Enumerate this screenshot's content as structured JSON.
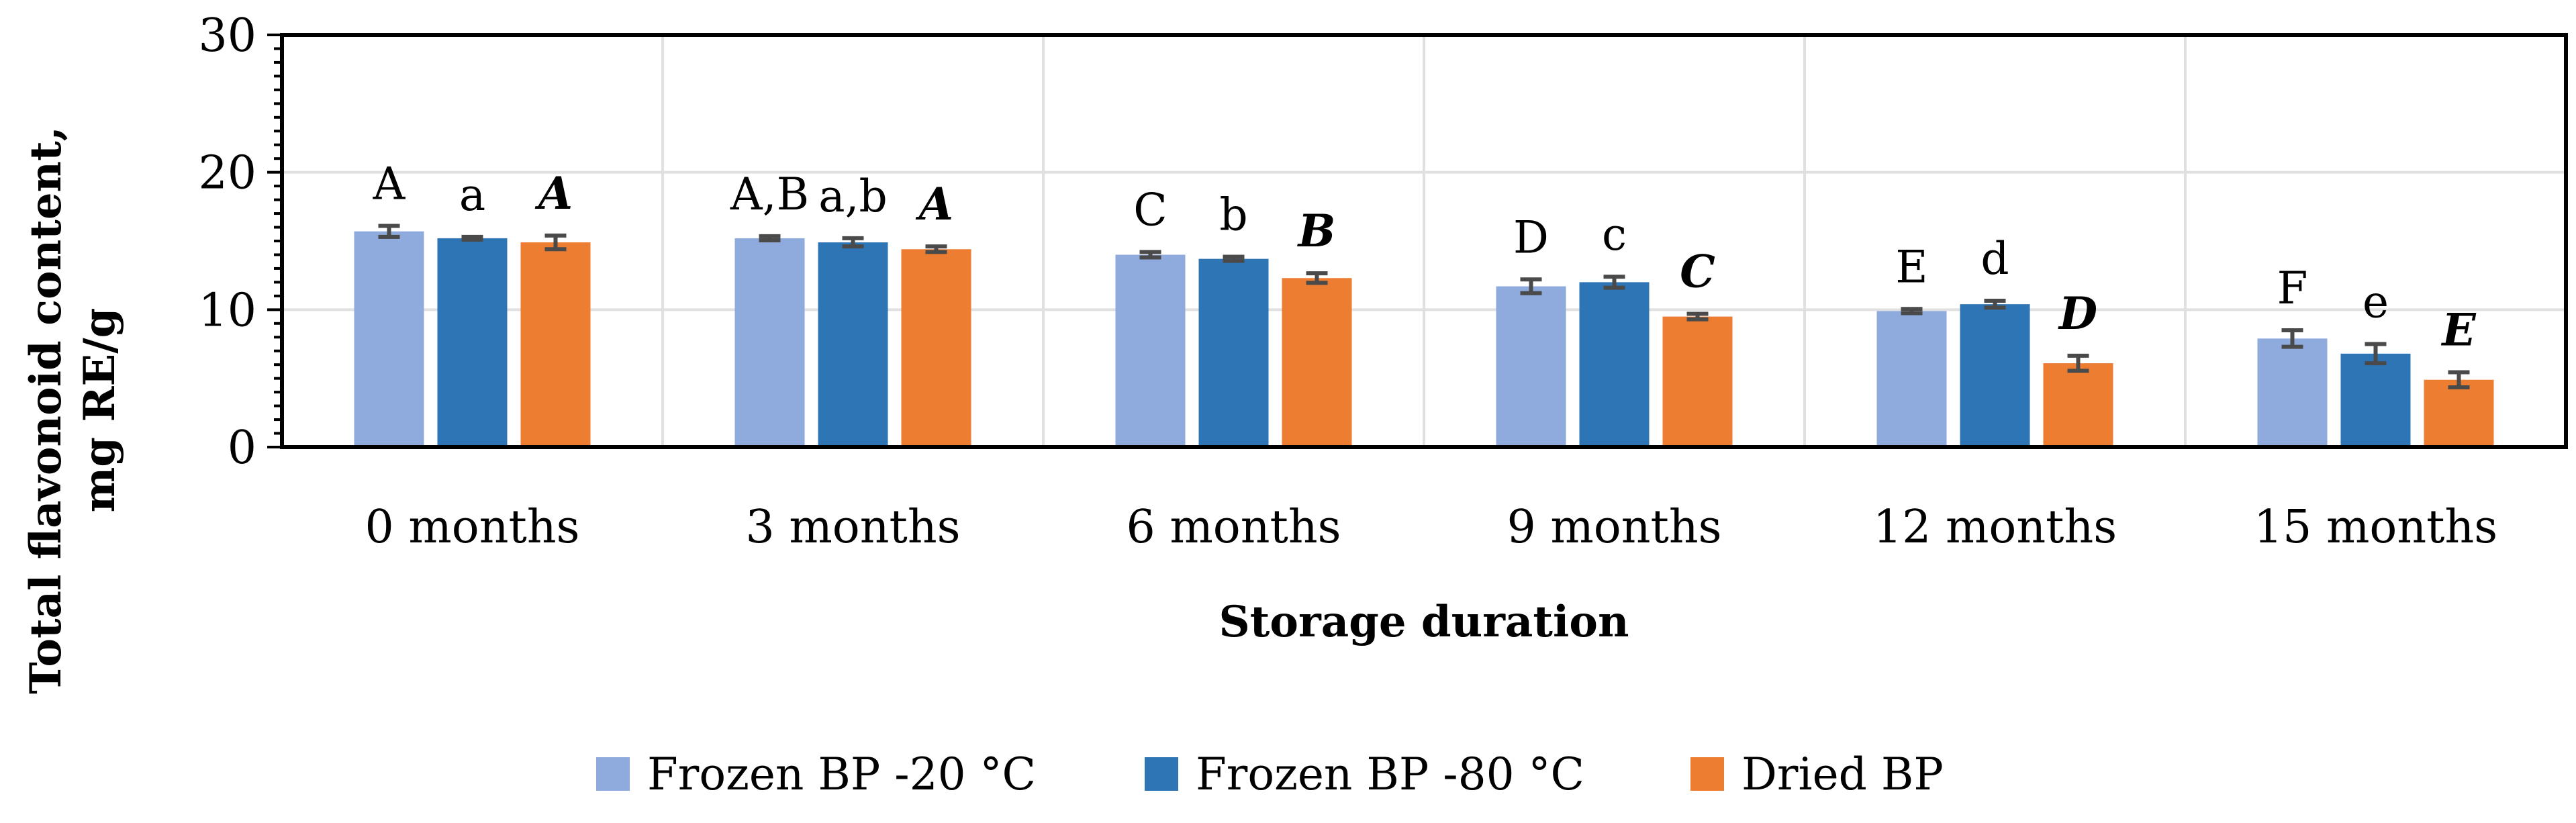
{
  "chart_data": {
    "type": "bar",
    "title": "",
    "xlabel": "Storage duration",
    "ylabel_line1": "Total flavonoid content,",
    "ylabel_line2": "mg RE/g",
    "ylim": [
      0,
      30
    ],
    "yticks": [
      0,
      10,
      20,
      30
    ],
    "grid": true,
    "legend_position": "bottom",
    "categories": [
      "0 months",
      "3 months",
      "6 months",
      "9 months",
      "12 months",
      "15 months"
    ],
    "series": [
      {
        "name": "Frozen BP -20 °C",
        "color": "#8faadc",
        "values": [
          15.7,
          15.2,
          14.0,
          11.7,
          9.9,
          7.9
        ],
        "errors": [
          0.4,
          0.15,
          0.2,
          0.5,
          0.15,
          0.6
        ],
        "letters": [
          "A",
          "A,B",
          "C",
          "D",
          "E",
          "F"
        ],
        "letter_style": "normal"
      },
      {
        "name": "Frozen BP -80 °C",
        "color": "#2e75b6",
        "values": [
          15.2,
          14.9,
          13.7,
          12.0,
          10.4,
          6.8
        ],
        "errors": [
          0.1,
          0.3,
          0.15,
          0.4,
          0.25,
          0.7
        ],
        "letters": [
          "a",
          "a,b",
          "b",
          "c",
          "d",
          "e"
        ],
        "letter_style": "normal"
      },
      {
        "name": "Dried BP",
        "color": "#ed7d31",
        "values": [
          14.9,
          14.4,
          12.3,
          9.5,
          6.1,
          4.9
        ],
        "errors": [
          0.5,
          0.2,
          0.35,
          0.2,
          0.55,
          0.55
        ],
        "letters": [
          "A",
          "A",
          "B",
          "C",
          "D",
          "E"
        ],
        "letter_style": "bold-italic"
      }
    ]
  }
}
